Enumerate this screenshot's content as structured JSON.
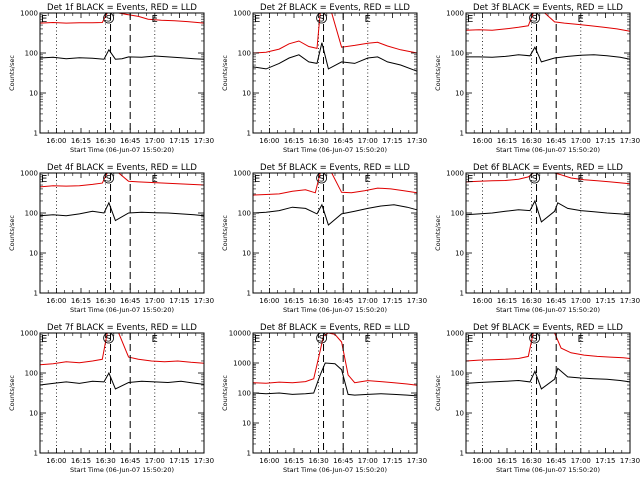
{
  "colors": {
    "events": "#000000",
    "lld": "#e00000",
    "background": "#ffffff",
    "axis": "#000000"
  },
  "xtick_labels": [
    "16:00",
    "16:15",
    "16:30",
    "16:45",
    "17:00",
    "17:15",
    "17:30"
  ],
  "ylabel": "Counts/sec",
  "xlabel": "Start Time (06-Jun-07 15:50:20)",
  "marker_S": "S",
  "marker_E": "E",
  "chart_data": [
    {
      "type": "line",
      "title": "Det 1f BLACK = Events, RED = LLD",
      "xlabel": "Start Time (06-Jun-07 15:50:20)",
      "ylabel": "Counts/sec",
      "y_scale": "log",
      "ylim": [
        1,
        1000
      ],
      "x_range_min": [
        0,
        100
      ],
      "ytick_labels": [
        "1",
        "10",
        "100",
        "1000"
      ],
      "dotted_lines_min": [
        10,
        40,
        70,
        100
      ],
      "dashed_lines_min": [
        43,
        55
      ],
      "s_marker_min": 40,
      "e_marker_min": 68,
      "series": [
        {
          "name": "Events",
          "color": "#000000",
          "x": [
            0,
            8,
            16,
            24,
            32,
            39,
            42,
            46,
            50,
            54,
            62,
            70,
            78,
            86,
            94,
            100
          ],
          "values": [
            75,
            78,
            72,
            76,
            74,
            70,
            120,
            70,
            72,
            80,
            78,
            84,
            80,
            76,
            72,
            70
          ]
        },
        {
          "name": "LLD",
          "color": "#e00000",
          "x": [
            0,
            8,
            16,
            24,
            32,
            38,
            41,
            44,
            48,
            54,
            60,
            66,
            74,
            82,
            90,
            96,
            100
          ],
          "values": [
            560,
            580,
            560,
            570,
            570,
            580,
            1000,
            1000,
            1000,
            900,
            820,
            700,
            660,
            640,
            610,
            580,
            560
          ]
        }
      ]
    },
    {
      "type": "line",
      "title": "Det 2f BLACK = Events, RED = LLD",
      "xlabel": "Start Time (06-Jun-07 15:50:20)",
      "ylabel": "Counts/sec",
      "y_scale": "log",
      "ylim": [
        1,
        1000
      ],
      "x_range_min": [
        0,
        100
      ],
      "ytick_labels": [
        "1",
        "10",
        "100",
        "1000"
      ],
      "dotted_lines_min": [
        10,
        40,
        70,
        100
      ],
      "dashed_lines_min": [
        43,
        55
      ],
      "s_marker_min": 40,
      "e_marker_min": 68,
      "series": [
        {
          "name": "Events",
          "color": "#000000",
          "x": [
            0,
            8,
            16,
            22,
            28,
            34,
            39,
            42,
            46,
            54,
            62,
            70,
            76,
            82,
            90,
            100
          ],
          "values": [
            45,
            40,
            55,
            75,
            90,
            60,
            55,
            180,
            40,
            60,
            55,
            75,
            80,
            60,
            50,
            35
          ]
        },
        {
          "name": "LLD",
          "color": "#e00000",
          "x": [
            0,
            8,
            16,
            22,
            28,
            34,
            39,
            41,
            44,
            48,
            54,
            62,
            70,
            76,
            82,
            90,
            100
          ],
          "values": [
            100,
            105,
            125,
            170,
            200,
            145,
            130,
            1000,
            1000,
            1000,
            140,
            155,
            175,
            185,
            150,
            120,
            100
          ]
        }
      ]
    },
    {
      "type": "line",
      "title": "Det 3f BLACK = Events, RED = LLD",
      "xlabel": "Start Time (06-Jun-07 15:50:20)",
      "ylabel": "Counts/sec",
      "y_scale": "log",
      "ylim": [
        1,
        1000
      ],
      "x_range_min": [
        0,
        100
      ],
      "ytick_labels": [
        "1",
        "10",
        "100",
        "1000"
      ],
      "dotted_lines_min": [
        10,
        40,
        70,
        100
      ],
      "dashed_lines_min": [
        43,
        55
      ],
      "s_marker_min": 40,
      "e_marker_min": 68,
      "series": [
        {
          "name": "Events",
          "color": "#000000",
          "x": [
            0,
            8,
            16,
            24,
            32,
            39,
            42,
            46,
            54,
            62,
            70,
            78,
            86,
            94,
            100
          ],
          "values": [
            80,
            80,
            78,
            82,
            90,
            85,
            140,
            60,
            75,
            82,
            88,
            90,
            85,
            78,
            70
          ]
        },
        {
          "name": "LLD",
          "color": "#e00000",
          "x": [
            0,
            8,
            16,
            24,
            32,
            38,
            41,
            44,
            48,
            54,
            60,
            68,
            76,
            84,
            92,
            100
          ],
          "values": [
            370,
            380,
            370,
            400,
            440,
            480,
            1000,
            1000,
            1000,
            600,
            560,
            520,
            480,
            440,
            400,
            350
          ]
        }
      ]
    },
    {
      "type": "line",
      "title": "Det 4f BLACK = Events, RED = LLD",
      "xlabel": "Start Time (06-Jun-07 15:50:20)",
      "ylabel": "Counts/sec",
      "y_scale": "log",
      "ylim": [
        1,
        1000
      ],
      "x_range_min": [
        0,
        100
      ],
      "ytick_labels": [
        "1",
        "10",
        "100",
        "1000"
      ],
      "dotted_lines_min": [
        10,
        40,
        70,
        100
      ],
      "dashed_lines_min": [
        43,
        55
      ],
      "s_marker_min": 40,
      "e_marker_min": 68,
      "series": [
        {
          "name": "Events",
          "color": "#000000",
          "x": [
            0,
            8,
            16,
            24,
            32,
            39,
            42,
            46,
            54,
            62,
            70,
            78,
            86,
            94,
            100
          ],
          "values": [
            85,
            90,
            85,
            95,
            110,
            100,
            180,
            65,
            100,
            105,
            102,
            100,
            95,
            90,
            85
          ]
        },
        {
          "name": "LLD",
          "color": "#e00000",
          "x": [
            0,
            8,
            16,
            24,
            32,
            38,
            41,
            44,
            48,
            54,
            60,
            68,
            76,
            84,
            92,
            100
          ],
          "values": [
            450,
            480,
            470,
            480,
            520,
            560,
            1000,
            1000,
            1000,
            620,
            600,
            580,
            560,
            540,
            520,
            500
          ]
        }
      ]
    },
    {
      "type": "line",
      "title": "Det 5f BLACK = Events, RED = LLD",
      "xlabel": "Start Time (06-Jun-07 15:50:20)",
      "ylabel": "Counts/sec",
      "y_scale": "log",
      "ylim": [
        1,
        1000
      ],
      "x_range_min": [
        0,
        100
      ],
      "ytick_labels": [
        "1",
        "10",
        "100",
        "1000"
      ],
      "dotted_lines_min": [
        10,
        40,
        70,
        100
      ],
      "dashed_lines_min": [
        43,
        55
      ],
      "s_marker_min": 40,
      "e_marker_min": 68,
      "series": [
        {
          "name": "Events",
          "color": "#000000",
          "x": [
            0,
            8,
            16,
            24,
            32,
            39,
            42,
            46,
            54,
            62,
            70,
            78,
            86,
            94,
            100
          ],
          "values": [
            100,
            105,
            115,
            140,
            130,
            95,
            160,
            50,
            95,
            110,
            130,
            150,
            160,
            140,
            120
          ]
        },
        {
          "name": "LLD",
          "color": "#e00000",
          "x": [
            0,
            8,
            16,
            24,
            32,
            38,
            41,
            44,
            48,
            54,
            60,
            68,
            76,
            84,
            92,
            100
          ],
          "values": [
            280,
            290,
            300,
            350,
            380,
            320,
            1000,
            1000,
            1000,
            330,
            320,
            360,
            420,
            400,
            360,
            320
          ]
        }
      ]
    },
    {
      "type": "line",
      "title": "Det 6f BLACK = Events, RED = LLD",
      "xlabel": "Start Time (06-Jun-07 15:50:20)",
      "ylabel": "Counts/sec",
      "y_scale": "log",
      "ylim": [
        1,
        1000
      ],
      "x_range_min": [
        0,
        100
      ],
      "ytick_labels": [
        "1",
        "10",
        "100",
        "1000"
      ],
      "dotted_lines_min": [
        10,
        40,
        70,
        100
      ],
      "dashed_lines_min": [
        43,
        55
      ],
      "s_marker_min": 40,
      "e_marker_min": 68,
      "series": [
        {
          "name": "Events",
          "color": "#000000",
          "x": [
            0,
            8,
            16,
            24,
            32,
            39,
            42,
            46,
            54,
            56,
            62,
            70,
            78,
            86,
            94,
            100
          ],
          "values": [
            90,
            95,
            100,
            110,
            120,
            115,
            200,
            60,
            110,
            180,
            130,
            115,
            108,
            100,
            95,
            90
          ]
        },
        {
          "name": "LLD",
          "color": "#e00000",
          "x": [
            0,
            8,
            16,
            24,
            32,
            38,
            41,
            44,
            48,
            54,
            58,
            64,
            72,
            80,
            88,
            96,
            100
          ],
          "values": [
            600,
            620,
            640,
            650,
            700,
            800,
            1000,
            1000,
            1000,
            1000,
            900,
            750,
            680,
            640,
            600,
            560,
            540
          ]
        }
      ]
    },
    {
      "type": "line",
      "title": "Det 7f BLACK = Events, RED = LLD",
      "xlabel": "Start Time (06-Jun-07 15:50:20)",
      "ylabel": "Counts/sec",
      "y_scale": "log",
      "ylim": [
        1,
        1000
      ],
      "x_range_min": [
        0,
        100
      ],
      "ytick_labels": [
        "1",
        "10",
        "100",
        "1000"
      ],
      "dotted_lines_min": [
        10,
        40,
        70,
        100
      ],
      "dashed_lines_min": [
        43,
        55
      ],
      "s_marker_min": 40,
      "e_marker_min": 68,
      "series": [
        {
          "name": "Events",
          "color": "#000000",
          "x": [
            0,
            8,
            16,
            24,
            32,
            39,
            42,
            46,
            54,
            62,
            70,
            78,
            86,
            94,
            100
          ],
          "values": [
            50,
            55,
            60,
            55,
            62,
            60,
            100,
            40,
            58,
            62,
            60,
            58,
            62,
            56,
            52
          ]
        },
        {
          "name": "LLD",
          "color": "#e00000",
          "x": [
            0,
            8,
            16,
            24,
            32,
            38,
            41,
            44,
            48,
            54,
            60,
            68,
            76,
            84,
            92,
            100
          ],
          "values": [
            160,
            170,
            190,
            180,
            200,
            220,
            1000,
            1000,
            1000,
            250,
            220,
            200,
            190,
            200,
            185,
            175
          ]
        }
      ]
    },
    {
      "type": "line",
      "title": "Det 8f BLACK = Events, RED = LLD",
      "xlabel": "Start Time (06-Jun-07 15:50:20)",
      "ylabel": "Counts/sec",
      "y_scale": "log",
      "ylim": [
        1,
        10000
      ],
      "x_range_min": [
        0,
        100
      ],
      "ytick_labels": [
        "1",
        "10",
        "100",
        "1000",
        "10000"
      ],
      "dotted_lines_min": [
        10,
        40,
        70,
        100
      ],
      "dashed_lines_min": [
        43,
        55
      ],
      "s_marker_min": 40,
      "e_marker_min": 68,
      "series": [
        {
          "name": "Events",
          "color": "#000000",
          "x": [
            0,
            8,
            16,
            24,
            32,
            37,
            41,
            44,
            50,
            54,
            58,
            62,
            70,
            78,
            86,
            94,
            100
          ],
          "values": [
            100,
            95,
            100,
            90,
            95,
            100,
            400,
            1000,
            950,
            600,
            90,
            85,
            90,
            95,
            90,
            85,
            80
          ]
        },
        {
          "name": "LLD",
          "color": "#e00000",
          "x": [
            0,
            8,
            16,
            24,
            32,
            37,
            40,
            43,
            46,
            50,
            54,
            58,
            62,
            70,
            78,
            86,
            94,
            100
          ],
          "values": [
            220,
            210,
            230,
            220,
            240,
            300,
            1500,
            8000,
            10000,
            9000,
            5000,
            400,
            220,
            260,
            240,
            220,
            200,
            180
          ]
        }
      ]
    },
    {
      "type": "line",
      "title": "Det 9f BLACK = Events, RED = LLD",
      "xlabel": "Start Time (06-Jun-07 15:50:20)",
      "ylabel": "Counts/sec",
      "y_scale": "log",
      "ylim": [
        1,
        1000
      ],
      "x_range_min": [
        0,
        100
      ],
      "ytick_labels": [
        "1",
        "10",
        "100",
        "1000"
      ],
      "dotted_lines_min": [
        10,
        40,
        70,
        100
      ],
      "dashed_lines_min": [
        43,
        55
      ],
      "s_marker_min": 40,
      "e_marker_min": 68,
      "series": [
        {
          "name": "Events",
          "color": "#000000",
          "x": [
            0,
            8,
            16,
            24,
            32,
            39,
            42,
            46,
            54,
            56,
            62,
            70,
            78,
            86,
            94,
            100
          ],
          "values": [
            55,
            58,
            60,
            62,
            65,
            60,
            110,
            40,
            70,
            130,
            80,
            75,
            72,
            70,
            65,
            60
          ]
        },
        {
          "name": "LLD",
          "color": "#e00000",
          "x": [
            0,
            8,
            16,
            24,
            32,
            38,
            41,
            44,
            48,
            54,
            58,
            64,
            72,
            80,
            88,
            96,
            100
          ],
          "values": [
            200,
            210,
            215,
            220,
            230,
            260,
            1000,
            1000,
            1000,
            1000,
            420,
            320,
            280,
            260,
            250,
            240,
            230
          ]
        }
      ]
    }
  ]
}
